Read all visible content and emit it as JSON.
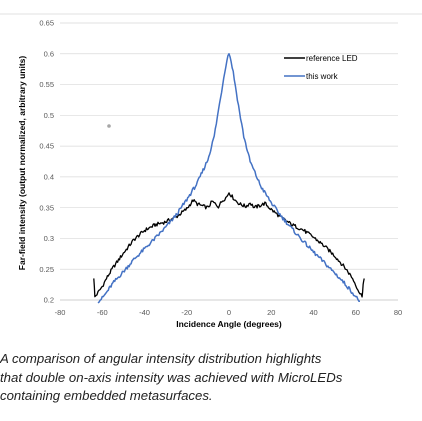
{
  "chart_data": {
    "type": "line",
    "xlabel": "Incidence Angle (degrees)",
    "ylabel": "Far-field intensity (output normalized, arbitrary units)",
    "xlim": [
      -80,
      80
    ],
    "ylim": [
      0.2,
      0.65
    ],
    "xticks": [
      "-80",
      "-60",
      "-40",
      "-20",
      "0",
      "20",
      "40",
      "60",
      "80"
    ],
    "yticks": [
      "0.2",
      "0.25",
      "0.3",
      "0.35",
      "0.4",
      "0.45",
      "0.5",
      "0.55",
      "0.6",
      "0.65"
    ],
    "grid": "horizontal",
    "legend_position": "top-right",
    "series": [
      {
        "name": "reference LED",
        "color": "#000000",
        "x": [
          -64,
          -63.5,
          -62,
          -60,
          -58,
          -55,
          -50,
          -45,
          -40,
          -35,
          -30,
          -25,
          -20,
          -17,
          -15,
          -12,
          -10,
          -8,
          -5,
          -3,
          -1,
          0,
          1,
          3,
          5,
          8,
          10,
          12,
          15,
          17,
          20,
          25,
          30,
          35,
          40,
          45,
          50,
          55,
          58,
          60,
          62,
          63,
          63.5,
          64
        ],
        "y": [
          0.237,
          0.205,
          0.212,
          0.222,
          0.235,
          0.252,
          0.276,
          0.298,
          0.313,
          0.322,
          0.327,
          0.335,
          0.348,
          0.362,
          0.356,
          0.352,
          0.35,
          0.36,
          0.352,
          0.362,
          0.368,
          0.375,
          0.37,
          0.362,
          0.356,
          0.352,
          0.358,
          0.35,
          0.354,
          0.357,
          0.347,
          0.333,
          0.322,
          0.314,
          0.302,
          0.288,
          0.272,
          0.252,
          0.238,
          0.225,
          0.21,
          0.207,
          0.225,
          0.235
        ]
      },
      {
        "name": "this work",
        "color": "#4472C4",
        "x": [
          -62,
          -60,
          -58,
          -55,
          -50,
          -45,
          -40,
          -35,
          -30,
          -25,
          -20,
          -15,
          -10,
          -7,
          -5,
          -3,
          -2,
          -1,
          0,
          1,
          2,
          3,
          5,
          7,
          10,
          15,
          20,
          25,
          30,
          35,
          40,
          45,
          50,
          55,
          58,
          60,
          62
        ],
        "y": [
          0.198,
          0.203,
          0.212,
          0.227,
          0.246,
          0.266,
          0.283,
          0.3,
          0.318,
          0.338,
          0.363,
          0.39,
          0.428,
          0.466,
          0.508,
          0.55,
          0.572,
          0.59,
          0.602,
          0.588,
          0.57,
          0.548,
          0.505,
          0.466,
          0.425,
          0.385,
          0.358,
          0.335,
          0.315,
          0.296,
          0.278,
          0.261,
          0.244,
          0.226,
          0.214,
          0.205,
          0.198
        ]
      }
    ]
  },
  "caption_lines": [
    "A comparison of angular intensity distribution highlights",
    "that double on-axis intensity was achieved with MicroLEDs",
    "containing embedded metasurfaces."
  ]
}
